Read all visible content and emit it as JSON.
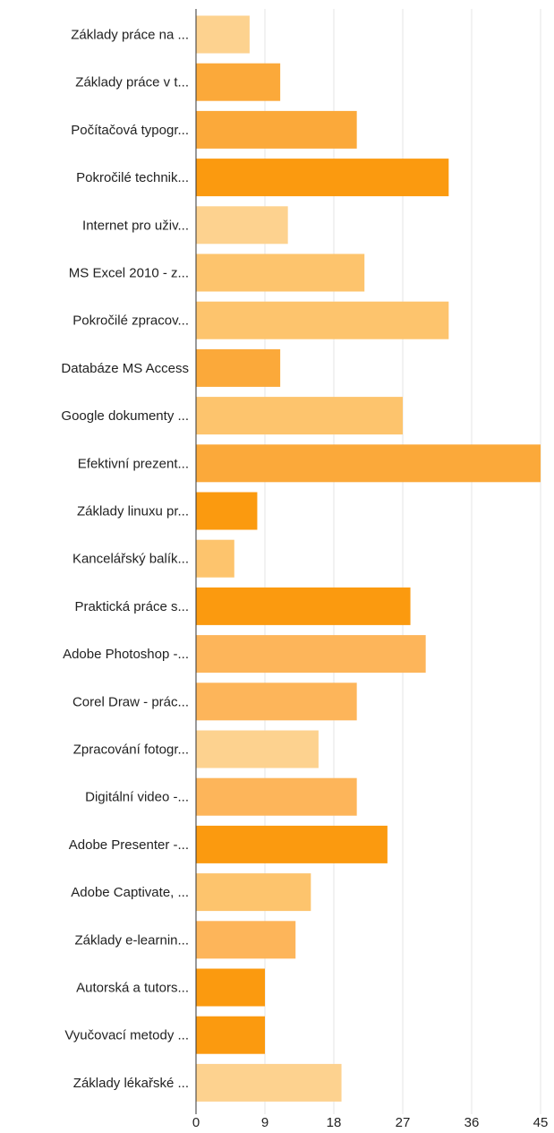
{
  "chart_data": {
    "type": "bar",
    "orientation": "horizontal",
    "categories": [
      "Základy práce na ...",
      "Základy práce v t...",
      "Počítačová typogr...",
      "Pokročilé technik...",
      "Internet pro uživ...",
      "MS Excel 2010 - z...",
      "Pokročilé zpracov...",
      "Databáze MS Access",
      "Google dokumenty ...",
      "Efektivní prezent...",
      "Základy linuxu pr...",
      "Kancelářský balík...",
      "Praktická práce s...",
      "Adobe Photoshop -...",
      "Corel Draw - prác...",
      "Zpracování fotogr...",
      "Digitální video -...",
      "Adobe Presenter -...",
      "Adobe Captivate, ...",
      "Základy e-learnin...",
      "Autorská a tutors...",
      "Vyučovací metody ...",
      "Základy lékařské ..."
    ],
    "values": [
      7,
      11,
      21,
      33,
      12,
      22,
      33,
      11,
      27,
      45,
      8,
      5,
      28,
      30,
      21,
      16,
      21,
      25,
      15,
      13,
      9,
      9,
      19
    ],
    "bar_colors": [
      "#fdd28f",
      "#fba93a",
      "#fba93a",
      "#fb9a0f",
      "#fdd28f",
      "#fdc46d",
      "#fdc46d",
      "#fba93a",
      "#fdc46d",
      "#fba93a",
      "#fb9a0f",
      "#fdc46d",
      "#fb9a0f",
      "#fdb55a",
      "#fdb55a",
      "#fdd28f",
      "#fdb55a",
      "#fb9a0f",
      "#fdc46d",
      "#fdb55a",
      "#fb9a0f",
      "#fb9a0f",
      "#fdd28f"
    ],
    "xticks": [
      "0",
      "9",
      "18",
      "27",
      "36",
      "45"
    ],
    "xlim": [
      0,
      45
    ],
    "xlabel": "",
    "ylabel": "",
    "title": "",
    "grid": true,
    "legend": "none"
  }
}
